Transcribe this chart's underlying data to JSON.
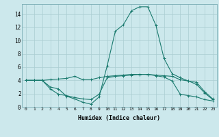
{
  "xlabel": "Humidex (Indice chaleur)",
  "bg_color": "#cce8ec",
  "grid_color": "#aacdd2",
  "line_color": "#1a7a6e",
  "xlim": [
    -0.5,
    23.5
  ],
  "ylim": [
    0,
    15.5
  ],
  "xticks": [
    0,
    1,
    2,
    3,
    4,
    5,
    6,
    7,
    8,
    9,
    10,
    11,
    12,
    13,
    14,
    15,
    16,
    17,
    18,
    19,
    20,
    21,
    22,
    23
  ],
  "yticks": [
    0,
    2,
    4,
    6,
    8,
    10,
    12,
    14
  ],
  "line1_x": [
    0,
    1,
    2,
    3,
    4,
    5,
    6,
    7,
    8,
    9,
    10,
    11,
    12,
    13,
    14,
    15,
    16,
    17,
    18,
    19,
    20,
    21,
    22,
    23
  ],
  "line1_y": [
    4.0,
    4.0,
    4.0,
    4.1,
    4.2,
    4.3,
    4.6,
    4.1,
    4.1,
    4.4,
    4.6,
    4.7,
    4.8,
    4.9,
    4.9,
    4.9,
    4.8,
    4.7,
    4.6,
    4.1,
    3.9,
    3.7,
    2.3,
    1.2
  ],
  "line2_x": [
    0,
    1,
    2,
    3,
    4,
    5,
    6,
    7,
    8,
    9,
    10,
    11,
    12,
    13,
    14,
    15,
    16,
    17,
    18,
    19,
    20,
    21,
    22,
    23
  ],
  "line2_y": [
    4.0,
    4.0,
    4.0,
    3.0,
    2.7,
    1.6,
    1.2,
    0.7,
    0.4,
    1.5,
    6.2,
    11.4,
    12.4,
    14.5,
    15.1,
    15.1,
    12.3,
    7.3,
    5.0,
    4.4,
    3.9,
    3.4,
    2.1,
    1.1
  ],
  "line3_x": [
    0,
    1,
    2,
    3,
    4,
    5,
    6,
    7,
    8,
    9,
    10,
    11,
    12,
    13,
    14,
    15,
    16,
    17,
    18,
    19,
    20,
    21,
    22,
    23
  ],
  "line3_y": [
    4.0,
    4.0,
    4.0,
    2.7,
    1.9,
    1.7,
    1.4,
    1.2,
    1.1,
    1.9,
    4.4,
    4.6,
    4.7,
    4.8,
    4.9,
    4.9,
    4.7,
    4.5,
    3.9,
    1.9,
    1.7,
    1.5,
    1.1,
    0.9
  ]
}
